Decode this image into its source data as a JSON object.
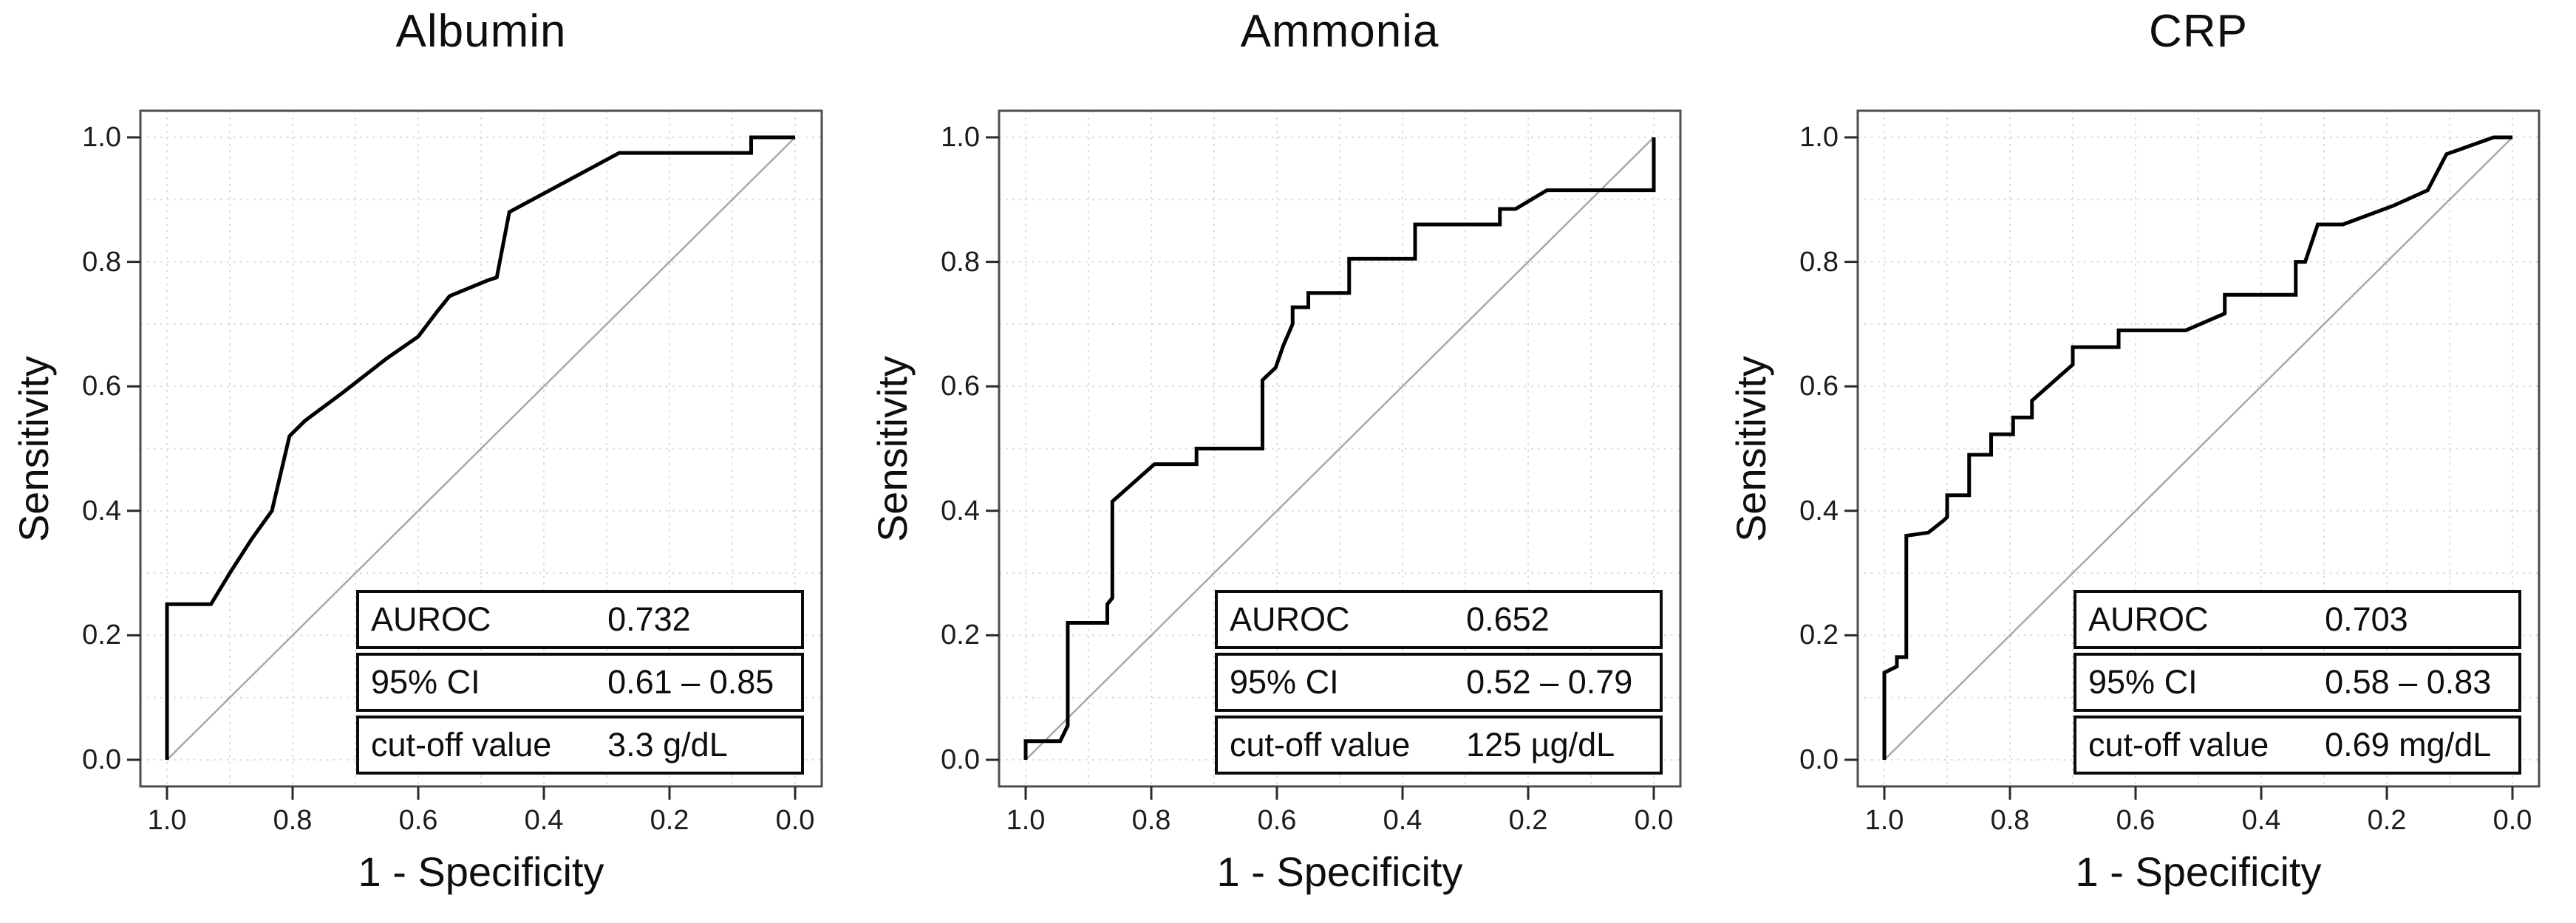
{
  "panels": [
    {
      "title": "Albumin",
      "xlabel": "1 - Specificity",
      "ylabel": "Sensitivity",
      "table": {
        "rows": [
          {
            "label": "AUROC",
            "value": "0.732"
          },
          {
            "label": "95% CI",
            "value": "0.61 – 0.85"
          },
          {
            "label": "cut-off value",
            "value": "3.3 g/dL"
          }
        ]
      }
    },
    {
      "title": "Ammonia",
      "xlabel": "1 - Specificity",
      "ylabel": "Sensitivity",
      "table": {
        "rows": [
          {
            "label": "AUROC",
            "value": "0.652"
          },
          {
            "label": "95% CI",
            "value": "0.52 – 0.79"
          },
          {
            "label": "cut-off value",
            "value": "125 µg/dL"
          }
        ]
      }
    },
    {
      "title": "CRP",
      "xlabel": "1 - Specificity",
      "ylabel": "Sensitivity",
      "table": {
        "rows": [
          {
            "label": "AUROC",
            "value": "0.703"
          },
          {
            "label": "95% CI",
            "value": "0.58 – 0.83"
          },
          {
            "label": "cut-off value",
            "value": "0.69 mg/dL"
          }
        ]
      }
    }
  ],
  "style_colors": {
    "curve": "#000000",
    "diagonal": "#a8a8a8",
    "grid": "#d9d9d9",
    "frame": "#4d4d4d",
    "tick": "#2a2a2a",
    "text": "#0e0e0e"
  },
  "chart_data": [
    {
      "type": "line",
      "title": "Albumin",
      "xlabel": "1 - Specificity",
      "ylabel": "Sensitivity",
      "x_axis_reversed": true,
      "xlim": [
        1.0,
        0.0
      ],
      "ylim": [
        0.0,
        1.0
      ],
      "x_ticks": [
        1.0,
        0.8,
        0.6,
        0.4,
        0.2,
        0.0
      ],
      "y_ticks": [
        0.0,
        0.2,
        0.4,
        0.6,
        0.8,
        1.0
      ],
      "grid": true,
      "grid_minor_step": 0.1,
      "annotations": {
        "AUROC": "0.732",
        "ci_95": "0.61 – 0.85",
        "cutoff": "3.3 g/dL"
      },
      "series": [
        {
          "name": "ROC curve",
          "points": [
            [
              1.0,
              0.0
            ],
            [
              1.0,
              0.25
            ],
            [
              0.93,
              0.25
            ],
            [
              0.9,
              0.3
            ],
            [
              0.865,
              0.355
            ],
            [
              0.833,
              0.4
            ],
            [
              0.805,
              0.52
            ],
            [
              0.78,
              0.545
            ],
            [
              0.72,
              0.59
            ],
            [
              0.65,
              0.645
            ],
            [
              0.6,
              0.68
            ],
            [
              0.57,
              0.72
            ],
            [
              0.55,
              0.745
            ],
            [
              0.49,
              0.77
            ],
            [
              0.475,
              0.775
            ],
            [
              0.455,
              0.88
            ],
            [
              0.28,
              0.975
            ],
            [
              0.07,
              0.975
            ],
            [
              0.07,
              1.0
            ],
            [
              0.0,
              1.0
            ]
          ]
        },
        {
          "name": "reference diagonal",
          "points": [
            [
              1.0,
              0.0
            ],
            [
              0.0,
              1.0
            ]
          ]
        }
      ]
    },
    {
      "type": "line",
      "title": "Ammonia",
      "xlabel": "1 - Specificity",
      "ylabel": "Sensitivity",
      "x_axis_reversed": true,
      "xlim": [
        1.0,
        0.0
      ],
      "ylim": [
        0.0,
        1.0
      ],
      "x_ticks": [
        1.0,
        0.8,
        0.6,
        0.4,
        0.2,
        0.0
      ],
      "y_ticks": [
        0.0,
        0.2,
        0.4,
        0.6,
        0.8,
        1.0
      ],
      "grid": true,
      "grid_minor_step": 0.1,
      "annotations": {
        "AUROC": "0.652",
        "ci_95": "0.52 – 0.79",
        "cutoff": "125 µg/dL"
      },
      "series": [
        {
          "name": "ROC curve",
          "points": [
            [
              1.0,
              0.0
            ],
            [
              1.0,
              0.03
            ],
            [
              0.945,
              0.03
            ],
            [
              0.933,
              0.055
            ],
            [
              0.933,
              0.22
            ],
            [
              0.87,
              0.22
            ],
            [
              0.87,
              0.25
            ],
            [
              0.862,
              0.26
            ],
            [
              0.862,
              0.415
            ],
            [
              0.795,
              0.475
            ],
            [
              0.728,
              0.475
            ],
            [
              0.728,
              0.5
            ],
            [
              0.623,
              0.5
            ],
            [
              0.623,
              0.61
            ],
            [
              0.602,
              0.63
            ],
            [
              0.59,
              0.665
            ],
            [
              0.575,
              0.7
            ],
            [
              0.575,
              0.727
            ],
            [
              0.55,
              0.727
            ],
            [
              0.55,
              0.75
            ],
            [
              0.485,
              0.75
            ],
            [
              0.485,
              0.805
            ],
            [
              0.38,
              0.805
            ],
            [
              0.38,
              0.86
            ],
            [
              0.245,
              0.86
            ],
            [
              0.245,
              0.885
            ],
            [
              0.22,
              0.885
            ],
            [
              0.17,
              0.915
            ],
            [
              0.0,
              0.915
            ],
            [
              0.0,
              1.0
            ]
          ]
        },
        {
          "name": "reference diagonal",
          "points": [
            [
              1.0,
              0.0
            ],
            [
              0.0,
              1.0
            ]
          ]
        }
      ]
    },
    {
      "type": "line",
      "title": "CRP",
      "xlabel": "1 - Specificity",
      "ylabel": "Sensitivity",
      "x_axis_reversed": true,
      "xlim": [
        1.0,
        0.0
      ],
      "ylim": [
        0.0,
        1.0
      ],
      "x_ticks": [
        1.0,
        0.8,
        0.6,
        0.4,
        0.2,
        0.0
      ],
      "y_ticks": [
        0.0,
        0.2,
        0.4,
        0.6,
        0.8,
        1.0
      ],
      "grid": true,
      "grid_minor_step": 0.1,
      "annotations": {
        "AUROC": "0.703",
        "ci_95": "0.58 – 0.83",
        "cutoff": "0.69 mg/dL"
      },
      "series": [
        {
          "name": "ROC curve",
          "points": [
            [
              1.0,
              0.0
            ],
            [
              1.0,
              0.14
            ],
            [
              0.98,
              0.15
            ],
            [
              0.98,
              0.165
            ],
            [
              0.965,
              0.165
            ],
            [
              0.965,
              0.36
            ],
            [
              0.93,
              0.365
            ],
            [
              0.905,
              0.385
            ],
            [
              0.9,
              0.39
            ],
            [
              0.9,
              0.425
            ],
            [
              0.865,
              0.425
            ],
            [
              0.865,
              0.49
            ],
            [
              0.83,
              0.49
            ],
            [
              0.83,
              0.523
            ],
            [
              0.795,
              0.523
            ],
            [
              0.795,
              0.55
            ],
            [
              0.765,
              0.55
            ],
            [
              0.765,
              0.577
            ],
            [
              0.7,
              0.635
            ],
            [
              0.7,
              0.663
            ],
            [
              0.627,
              0.663
            ],
            [
              0.627,
              0.69
            ],
            [
              0.52,
              0.69
            ],
            [
              0.458,
              0.717
            ],
            [
              0.458,
              0.747
            ],
            [
              0.345,
              0.747
            ],
            [
              0.345,
              0.8
            ],
            [
              0.33,
              0.8
            ],
            [
              0.31,
              0.86
            ],
            [
              0.27,
              0.86
            ],
            [
              0.19,
              0.89
            ],
            [
              0.135,
              0.915
            ],
            [
              0.105,
              0.973
            ],
            [
              0.03,
              1.0
            ],
            [
              0.0,
              1.0
            ]
          ]
        },
        {
          "name": "reference diagonal",
          "points": [
            [
              1.0,
              0.0
            ],
            [
              0.0,
              1.0
            ]
          ]
        }
      ]
    }
  ]
}
